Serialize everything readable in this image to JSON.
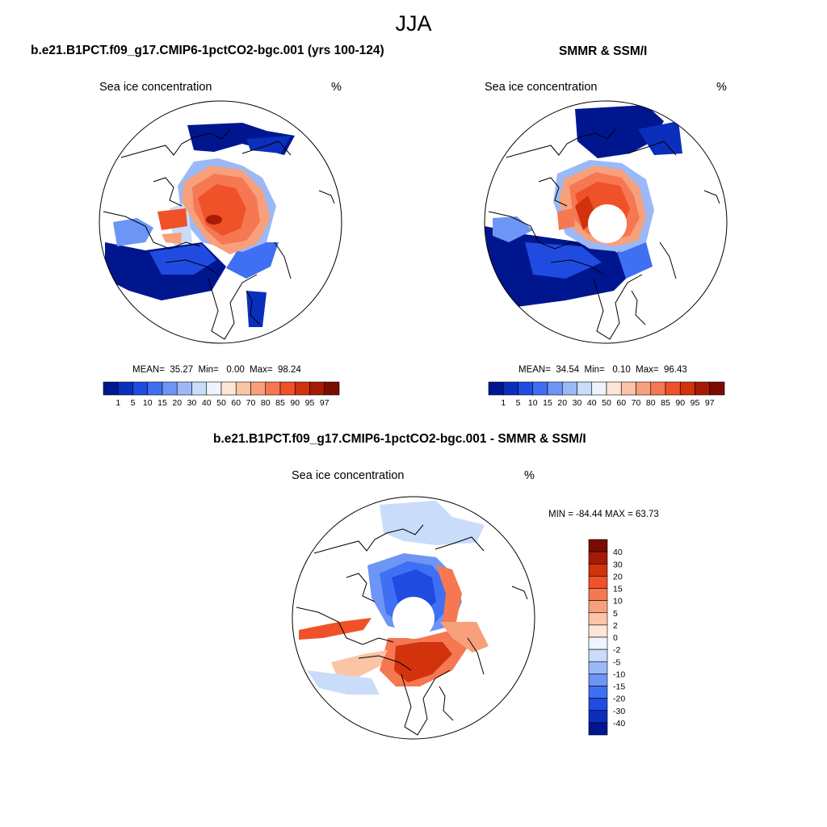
{
  "figure": {
    "season": "JJA"
  },
  "panels": [
    {
      "title": "b.e21.B1PCT.f09_g17.CMIP6-1pctCO2-bgc.001 (yrs 100-124)",
      "variable": "Sea ice concentration",
      "units": "%",
      "stats": {
        "mean_label": "MEAN=",
        "mean": "35.27",
        "min_label": "Min=",
        "min": "0.00",
        "max_label": "Max=",
        "max": "98.24"
      },
      "colorbar": {
        "levels": [
          "1",
          "5",
          "10",
          "15",
          "20",
          "30",
          "40",
          "50",
          "60",
          "70",
          "80",
          "85",
          "90",
          "95",
          "97"
        ],
        "colors": [
          "#00168f",
          "#0a2fbc",
          "#1f4be0",
          "#3f6ff2",
          "#6d95f5",
          "#9bb9f7",
          "#c9dcfa",
          "#eef4fd",
          "#fde6d6",
          "#fbc4a6",
          "#f8a07b",
          "#f57852",
          "#ef5229",
          "#d2320c",
          "#a51b06",
          "#7a0c00"
        ]
      }
    },
    {
      "title": "SMMR & SSM/I",
      "variable": "Sea ice concentration",
      "units": "%",
      "stats": {
        "mean_label": "MEAN=",
        "mean": "34.54",
        "min_label": "Min=",
        "min": "0.10",
        "max_label": "Max=",
        "max": "96.43"
      },
      "colorbar": {
        "levels": [
          "1",
          "5",
          "10",
          "15",
          "20",
          "30",
          "40",
          "50",
          "60",
          "70",
          "80",
          "85",
          "90",
          "95",
          "97"
        ],
        "colors": [
          "#00168f",
          "#0a2fbc",
          "#1f4be0",
          "#3f6ff2",
          "#6d95f5",
          "#9bb9f7",
          "#c9dcfa",
          "#eef4fd",
          "#fde6d6",
          "#fbc4a6",
          "#f8a07b",
          "#f57852",
          "#ef5229",
          "#d2320c",
          "#a51b06",
          "#7a0c00"
        ]
      }
    },
    {
      "title": "b.e21.B1PCT.f09_g17.CMIP6-1pctCO2-bgc.001 - SMMR & SSM/I",
      "variable": "Sea ice concentration",
      "units": "%",
      "stats": {
        "text": "MIN = -84.44 MAX =  63.73"
      },
      "colorbar": {
        "levels": [
          "40",
          "30",
          "20",
          "15",
          "10",
          "5",
          "2",
          "0",
          "-2",
          "-5",
          "-10",
          "-15",
          "-20",
          "-30",
          "-40"
        ],
        "colors": [
          "#7a0c00",
          "#a51b06",
          "#d2320c",
          "#ef5229",
          "#f57852",
          "#f8a07b",
          "#fbc4a6",
          "#fde6d6",
          "#eef4fd",
          "#c9dcfa",
          "#9bb9f7",
          "#6d95f5",
          "#3f6ff2",
          "#1f4be0",
          "#0a2fbc",
          "#00168f"
        ]
      }
    }
  ]
}
